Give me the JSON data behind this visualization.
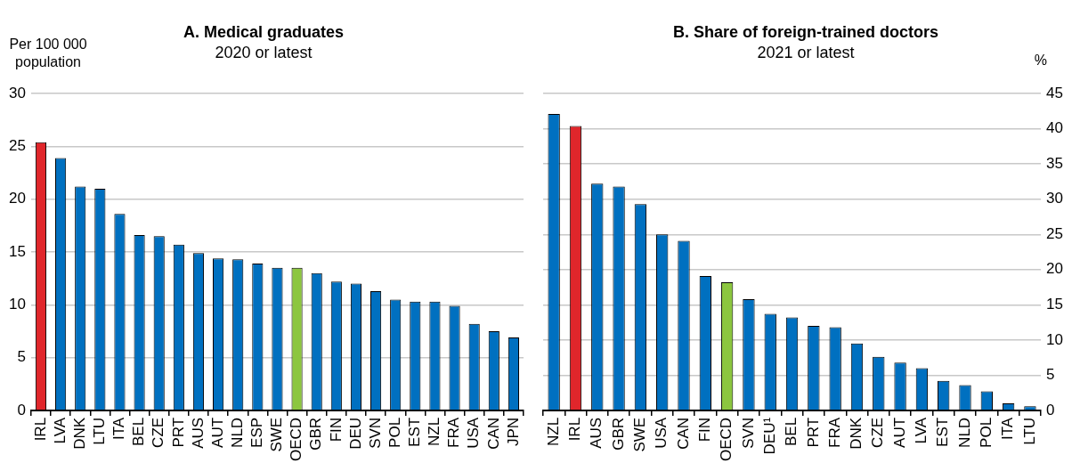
{
  "chart_data": [
    {
      "type": "bar",
      "title": "A. Medical graduates",
      "subtitle": "2020 or latest",
      "ylabel": "Per 100 000 population",
      "categories": [
        "IRL",
        "LVA",
        "DNK",
        "LTU",
        "ITA",
        "BEL",
        "CZE",
        "PRT",
        "AUS",
        "AUT",
        "NLD",
        "ESP",
        "SWE",
        "OECD",
        "GBR",
        "FIN",
        "DEU",
        "SVN",
        "POL",
        "EST",
        "NZL",
        "FRA",
        "USA",
        "CAN",
        "JPN"
      ],
      "values": [
        25.4,
        23.9,
        21.2,
        21.0,
        18.6,
        16.6,
        16.5,
        15.7,
        14.9,
        14.4,
        14.3,
        13.9,
        13.5,
        13.5,
        13.0,
        12.2,
        12.0,
        11.3,
        10.5,
        10.3,
        10.3,
        9.9,
        8.2,
        7.5,
        6.9
      ],
      "colors": [
        "#e0262b",
        "#0070c0",
        "#0070c0",
        "#0070c0",
        "#0070c0",
        "#0070c0",
        "#0070c0",
        "#0070c0",
        "#0070c0",
        "#0070c0",
        "#0070c0",
        "#0070c0",
        "#0070c0",
        "#8cc63f",
        "#0070c0",
        "#0070c0",
        "#0070c0",
        "#0070c0",
        "#0070c0",
        "#0070c0",
        "#0070c0",
        "#0070c0",
        "#0070c0",
        "#0070c0",
        "#0070c0"
      ],
      "ylim": [
        0,
        30
      ],
      "yticks": [
        0,
        5,
        10,
        15,
        20,
        25,
        30
      ],
      "grid": "y"
    },
    {
      "type": "bar",
      "title": "B. Share of foreign-trained doctors",
      "subtitle": "2021 or latest",
      "y2label": "%",
      "categories": [
        "NZL",
        "IRL",
        "AUS",
        "GBR",
        "SWE",
        "USA",
        "CAN",
        "FIN",
        "OECD",
        "SVN",
        "DEU¹",
        "BEL",
        "PRT",
        "FRA",
        "DNK",
        "CZE",
        "AUT",
        "LVA",
        "EST",
        "NLD",
        "POL",
        "ITA",
        "LTU"
      ],
      "series": [
        {
          "axis": "y2",
          "values": [
            42.1,
            40.4,
            32.2,
            31.8,
            29.3,
            25.0,
            24.1,
            19.1,
            18.2,
            15.8,
            13.7,
            13.2,
            12.0,
            11.8,
            9.5,
            7.6,
            6.8,
            6.0,
            4.2,
            3.6,
            2.7,
            1.0,
            0.6
          ],
          "colors": [
            "#0070c0",
            "#e0262b",
            "#0070c0",
            "#0070c0",
            "#0070c0",
            "#0070c0",
            "#0070c0",
            "#0070c0",
            "#8cc63f",
            "#0070c0",
            "#0070c0",
            "#0070c0",
            "#0070c0",
            "#0070c0",
            "#0070c0",
            "#0070c0",
            "#0070c0",
            "#0070c0",
            "#0070c0",
            "#0070c0",
            "#0070c0",
            "#0070c0",
            "#0070c0"
          ]
        }
      ],
      "y2lim": [
        0,
        45
      ],
      "y2ticks": [
        0,
        5,
        10,
        15,
        20,
        25,
        30,
        35,
        40,
        45
      ],
      "grid": "y"
    }
  ]
}
